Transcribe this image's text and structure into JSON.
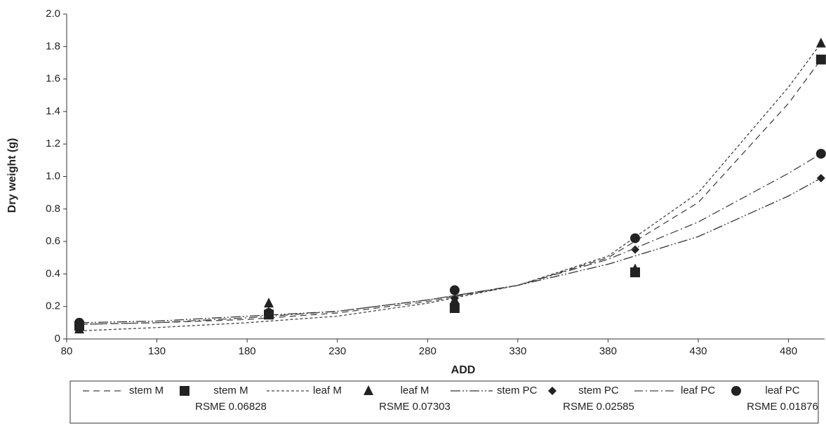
{
  "chart_data": {
    "type": "line",
    "x_label": "ADD",
    "y_label": "Dry weight (g)",
    "xlim": [
      80,
      500
    ],
    "ylim": [
      0,
      2
    ],
    "xticks": [
      80,
      130,
      180,
      230,
      280,
      330,
      380,
      430,
      480
    ],
    "yticks": [
      0,
      0.2,
      0.4,
      0.6,
      0.8,
      {
        "value": 1,
        "label": "1.0"
      },
      1.2,
      1.4,
      1.6,
      1.8,
      {
        "value": 2,
        "label": "2.0"
      }
    ],
    "series": [
      {
        "name": "stem M",
        "kind": "line",
        "color": "#444",
        "dash": "9,6",
        "x": [
          87,
          130,
          180,
          230,
          280,
          330,
          380,
          430,
          480,
          498
        ],
        "values": [
          0.09,
          0.1,
          0.12,
          0.16,
          0.23,
          0.33,
          0.5,
          0.84,
          1.45,
          1.72
        ]
      },
      {
        "name": "stem M",
        "kind": "marker",
        "marker": "square",
        "color": "#222",
        "rsme": "RSME 0.06828",
        "x": [
          87,
          192,
          295,
          395,
          498
        ],
        "values": [
          0.08,
          0.15,
          0.19,
          0.41,
          1.72
        ]
      },
      {
        "name": "leaf M",
        "kind": "line",
        "color": "#444",
        "dash": "4,3",
        "x": [
          87,
          130,
          180,
          230,
          280,
          330,
          380,
          430,
          480,
          498
        ],
        "values": [
          0.05,
          0.07,
          0.1,
          0.14,
          0.22,
          0.33,
          0.51,
          0.9,
          1.55,
          1.82
        ]
      },
      {
        "name": "leaf M",
        "kind": "marker",
        "marker": "triangle",
        "color": "#222",
        "rsme": "RSME 0.07303",
        "x": [
          87,
          192,
          295,
          395,
          498
        ],
        "values": [
          0.06,
          0.22,
          0.24,
          0.43,
          1.82
        ]
      },
      {
        "name": "stem PC",
        "kind": "line",
        "color": "#333",
        "dash": "14,3,2,3,2,3",
        "x": [
          87,
          130,
          180,
          230,
          280,
          330,
          380,
          430,
          480,
          498
        ],
        "values": [
          0.1,
          0.11,
          0.14,
          0.17,
          0.24,
          0.33,
          0.46,
          0.63,
          0.88,
          0.99
        ]
      },
      {
        "name": "stem PC",
        "kind": "marker",
        "marker": "diamond",
        "color": "#222",
        "rsme": "RSME 0.02585",
        "x": [
          87,
          192,
          295,
          395,
          498
        ],
        "values": [
          0.09,
          0.17,
          0.25,
          0.55,
          0.99
        ]
      },
      {
        "name": "leaf PC",
        "kind": "line",
        "color": "#444",
        "dash": "12,4,2,4",
        "x": [
          87,
          130,
          180,
          230,
          280,
          330,
          380,
          430,
          480,
          498
        ],
        "values": [
          0.09,
          0.1,
          0.13,
          0.17,
          0.24,
          0.33,
          0.49,
          0.72,
          1.02,
          1.14
        ]
      },
      {
        "name": "leaf PC",
        "kind": "marker",
        "marker": "circle",
        "color": "#222",
        "rsme": "RSME 0.01876",
        "x": [
          87,
          192,
          295,
          395,
          498
        ],
        "values": [
          0.1,
          0.16,
          0.3,
          0.62,
          1.14
        ]
      }
    ]
  }
}
